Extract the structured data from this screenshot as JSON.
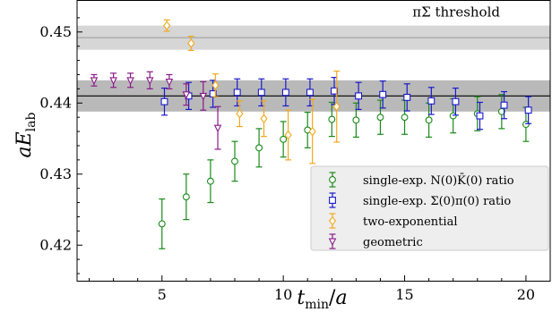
{
  "chart_data": {
    "type": "scatter",
    "xlabel": "t_min/a",
    "ylabel": "aE_lab",
    "xlim": [
      1.5,
      21
    ],
    "ylim": [
      0.415,
      0.4545
    ],
    "x_ticks": [
      "5",
      "10",
      "15",
      "20"
    ],
    "x_tick_values": [
      5,
      10,
      15,
      20
    ],
    "y_ticks": [
      "0.42",
      "0.43",
      "0.44",
      "0.45"
    ],
    "y_tick_values": [
      0.42,
      0.43,
      0.44,
      0.45
    ],
    "threshold": {
      "label": "πΣ threshold",
      "center": 0.4492,
      "lo": 0.4475,
      "hi": 0.4509
    },
    "fit_band": {
      "center": 0.441,
      "lo": 0.4388,
      "hi": 0.4432
    },
    "legend_placement": "lower-right",
    "series": [
      {
        "name": "single-exp. N(0)K̄(0) ratio",
        "color": "#1a8a1a",
        "marker": "circle",
        "points": [
          [
            5,
            0.423,
            0.0035
          ],
          [
            6,
            0.4268,
            0.0032
          ],
          [
            7,
            0.429,
            0.003
          ],
          [
            8,
            0.4318,
            0.0028
          ],
          [
            9,
            0.4337,
            0.0027
          ],
          [
            10,
            0.4349,
            0.0025
          ],
          [
            11,
            0.4362,
            0.0025
          ],
          [
            12,
            0.4377,
            0.0024
          ],
          [
            13,
            0.4376,
            0.0024
          ],
          [
            14,
            0.438,
            0.0024
          ],
          [
            15,
            0.438,
            0.0024
          ],
          [
            16,
            0.4376,
            0.0024
          ],
          [
            17,
            0.4382,
            0.0024
          ],
          [
            18,
            0.4385,
            0.0024
          ],
          [
            19,
            0.4388,
            0.0024
          ],
          [
            20,
            0.437,
            0.0024
          ]
        ]
      },
      {
        "name": "single-exp. Σ(0)π(0) ratio",
        "color": "#1a1acc",
        "marker": "square",
        "points": [
          [
            5.1,
            0.4402,
            0.0019
          ],
          [
            6.1,
            0.441,
            0.0019
          ],
          [
            7.1,
            0.4413,
            0.0019
          ],
          [
            8.1,
            0.4415,
            0.0019
          ],
          [
            9.1,
            0.4415,
            0.0019
          ],
          [
            10.1,
            0.4415,
            0.0019
          ],
          [
            11.1,
            0.4415,
            0.0019
          ],
          [
            12.1,
            0.4417,
            0.0019
          ],
          [
            13.1,
            0.441,
            0.0019
          ],
          [
            14.1,
            0.4412,
            0.0019
          ],
          [
            15.1,
            0.4408,
            0.0019
          ],
          [
            16.1,
            0.4403,
            0.0019
          ],
          [
            17.1,
            0.4402,
            0.0019
          ],
          [
            18.1,
            0.4382,
            0.0019
          ],
          [
            19.1,
            0.4397,
            0.0019
          ],
          [
            20.1,
            0.439,
            0.0019
          ]
        ]
      },
      {
        "name": "two-exponential",
        "color": "#f2a81c",
        "marker": "diamond",
        "points": [
          [
            5.2,
            0.4509,
            0.0008
          ],
          [
            6.2,
            0.4484,
            0.001
          ],
          [
            7.2,
            0.4425,
            0.0016
          ],
          [
            8.2,
            0.4385,
            0.0018
          ],
          [
            9.2,
            0.4378,
            0.0025
          ],
          [
            10.2,
            0.4355,
            0.0035
          ],
          [
            11.2,
            0.436,
            0.0045
          ],
          [
            12.2,
            0.4395,
            0.005
          ]
        ]
      },
      {
        "name": "geometric",
        "color": "#8a1a8a",
        "marker": "triangle-down",
        "points": [
          [
            2.2,
            0.4432,
            0.0008
          ],
          [
            3.0,
            0.4432,
            0.001
          ],
          [
            3.7,
            0.4432,
            0.001
          ],
          [
            4.5,
            0.4432,
            0.0012
          ],
          [
            5.3,
            0.443,
            0.001
          ],
          [
            6.0,
            0.4412,
            0.0015
          ],
          [
            6.7,
            0.441,
            0.002
          ],
          [
            7.3,
            0.4365,
            0.003
          ]
        ]
      }
    ]
  }
}
